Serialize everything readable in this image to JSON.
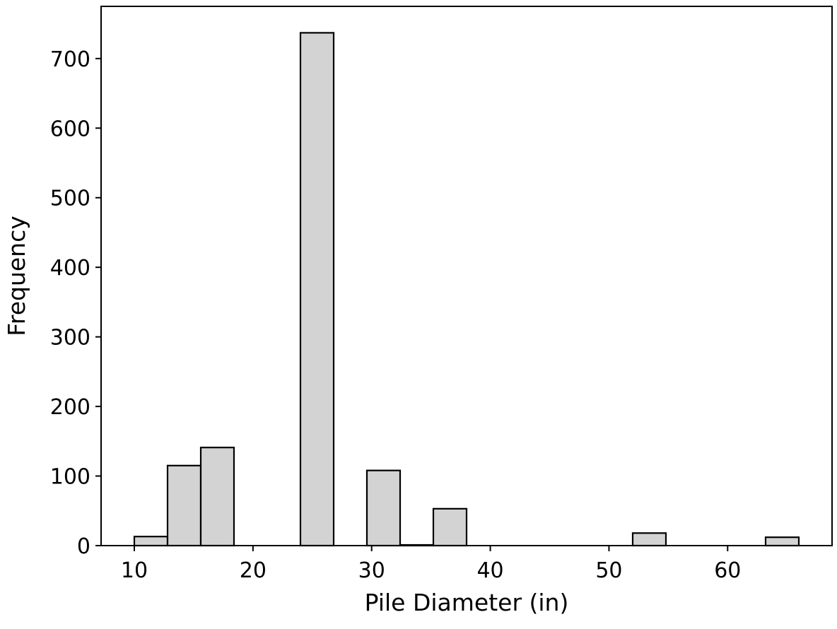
{
  "chart_data": {
    "type": "bar",
    "subtype": "histogram",
    "title": "",
    "xlabel": "Pile Diameter (in)",
    "ylabel": "Frequency",
    "xlim": [
      7.2,
      68.8
    ],
    "ylim": [
      0,
      775
    ],
    "xticks": [
      10,
      20,
      30,
      40,
      50,
      60
    ],
    "yticks": [
      0,
      100,
      200,
      300,
      400,
      500,
      600,
      700
    ],
    "bin_edges": [
      10,
      12.8,
      15.6,
      18.4,
      21.2,
      24.0,
      26.8,
      29.6,
      32.4,
      35.2,
      38.0,
      40.8,
      43.6,
      46.4,
      49.2,
      52.0,
      54.8,
      57.6,
      60.4,
      63.2,
      66.0
    ],
    "values": [
      13,
      115,
      141,
      0,
      0,
      737,
      0,
      108,
      1,
      53,
      0,
      0,
      0,
      0,
      0,
      18,
      0,
      0,
      0,
      12
    ],
    "bar_color": "#d3d3d3",
    "edge_color": "#000000",
    "grid": false,
    "legend": "none"
  }
}
